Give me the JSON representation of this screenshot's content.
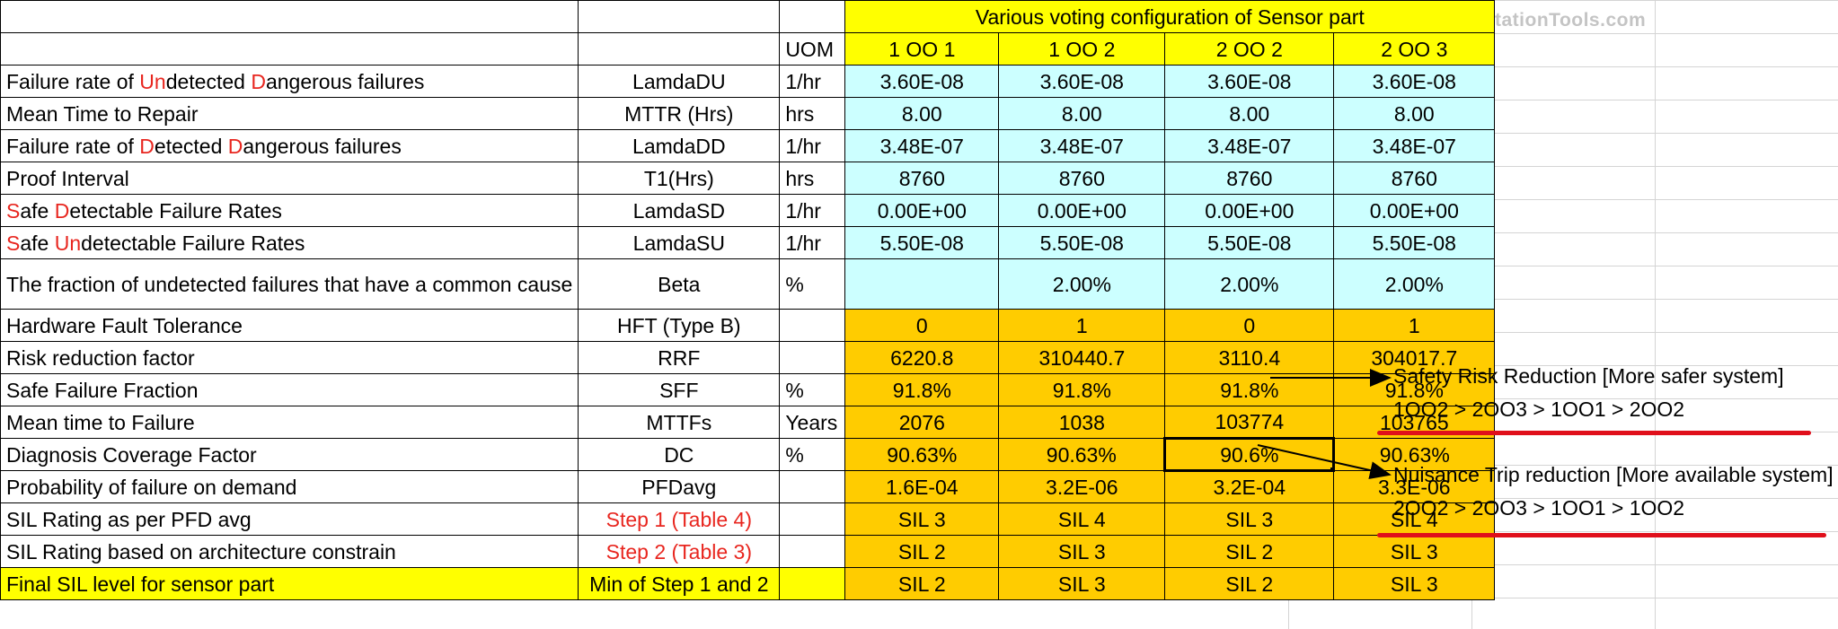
{
  "watermark": "InstrumentationTools.com",
  "header": {
    "group_title": "Various voting configuration of Sensor part",
    "uom_label": "UOM",
    "configs": [
      "1 OO 1",
      "1 OO 2",
      "2 OO 2",
      "2 OO 3"
    ]
  },
  "rows": [
    {
      "label_parts": [
        "Failure rate of ",
        "Un",
        "detected ",
        "D",
        "angerous failures"
      ],
      "symbol": "LamdaDU",
      "uom": "1/hr",
      "values": [
        "3.60E-08",
        "3.60E-08",
        "3.60E-08",
        "3.60E-08"
      ]
    },
    {
      "label_parts": [
        "Mean Time to Repair"
      ],
      "symbol": "MTTR (Hrs)",
      "uom": "hrs",
      "values": [
        "8.00",
        "8.00",
        "8.00",
        "8.00"
      ]
    },
    {
      "label_parts": [
        "Failure rate of ",
        "D",
        "etected ",
        "D",
        "angerous failures"
      ],
      "symbol": "LamdaDD",
      "uom": "1/hr",
      "values": [
        "3.48E-07",
        "3.48E-07",
        "3.48E-07",
        "3.48E-07"
      ]
    },
    {
      "label_parts": [
        "Proof Interval"
      ],
      "symbol": "T1(Hrs)",
      "uom": "hrs",
      "values": [
        "8760",
        "8760",
        "8760",
        "8760"
      ]
    },
    {
      "label_parts": [
        "S",
        "afe ",
        "D",
        "etectable Failure Rates"
      ],
      "symbol": "LamdaSD",
      "uom": "1/hr",
      "values": [
        "0.00E+00",
        "0.00E+00",
        "0.00E+00",
        "0.00E+00"
      ]
    },
    {
      "label_parts": [
        "S",
        "afe ",
        "Un",
        "detectable Failure Rates"
      ],
      "symbol": "LamdaSU",
      "uom": "1/hr",
      "values": [
        "5.50E-08",
        "5.50E-08",
        "5.50E-08",
        "5.50E-08"
      ]
    },
    {
      "label_parts": [
        "The fraction of undetected failures that have a common cause"
      ],
      "symbol": "Beta",
      "uom": "%",
      "values": [
        "",
        "2.00%",
        "2.00%",
        "2.00%"
      ]
    },
    {
      "label_parts": [
        "Hardware Fault Tolerance"
      ],
      "symbol": "HFT (Type B)",
      "uom": "",
      "values": [
        "0",
        "1",
        "0",
        "1"
      ]
    },
    {
      "label_parts": [
        "Risk reduction factor"
      ],
      "symbol": "RRF",
      "uom": "",
      "values": [
        "6220.8",
        "310440.7",
        "3110.4",
        "304017.7"
      ]
    },
    {
      "label_parts": [
        "Safe Failure Fraction"
      ],
      "symbol": "SFF",
      "uom": "%",
      "values": [
        "91.8%",
        "91.8%",
        "91.8%",
        "91.8%"
      ]
    },
    {
      "label_parts": [
        "Mean time to Failure"
      ],
      "symbol": "MTTFs",
      "uom": "Years",
      "values": [
        "2076",
        "1038",
        "103774",
        "103765"
      ]
    },
    {
      "label_parts": [
        "Diagnosis Coverage Factor"
      ],
      "symbol": "DC",
      "uom": "%",
      "values": [
        "90.63%",
        "90.63%",
        "90.6%",
        "90.63%"
      ]
    },
    {
      "label_parts": [
        "Probability of failure on demand"
      ],
      "symbol": "PFDavg",
      "uom": "",
      "values": [
        "1.6E-04",
        "3.2E-06",
        "3.2E-04",
        "3.3E-06"
      ]
    },
    {
      "label_parts": [
        "SIL Rating as per PFD avg"
      ],
      "symbol": "Step 1 (Table 4)",
      "uom": "",
      "values": [
        "SIL 3",
        "SIL 4",
        "SIL 3",
        "SIL 4"
      ]
    },
    {
      "label_parts": [
        "SIL Rating based on architecture constrain"
      ],
      "symbol": "Step 2 (Table 3)",
      "uom": "",
      "values": [
        "SIL 2",
        "SIL 3",
        "SIL 2",
        "SIL 3"
      ]
    },
    {
      "label_parts": [
        "Final SIL level for sensor part"
      ],
      "symbol": "Min of Step 1 and 2",
      "uom": "",
      "values": [
        "SIL 2",
        "SIL 3",
        "SIL 2",
        "SIL 3"
      ]
    }
  ],
  "notes": {
    "safety_title": "Safety Risk Reduction [More safer system]",
    "safety_order": "1OO2 > 2OO3 > 1OO1 > 2OO2",
    "nuisance_title": "Nuisance Trip reduction [More available system]",
    "nuisance_order": "2OO2 > 2OO3 > 1OO1 > 1OO2"
  },
  "colors": {
    "input_fill": "#ccffff",
    "header_fill": "#ffff00",
    "result_fill": "#ffcc00",
    "highlight_text": "#e8261f",
    "underline": "#e00f1b"
  }
}
